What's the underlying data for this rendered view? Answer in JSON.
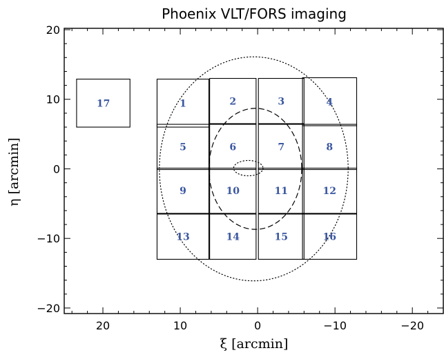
{
  "chart_data": {
    "type": "scatter",
    "title": "Phoenix VLT/FORS imaging",
    "xlabel": "ξ [arcmin]",
    "ylabel": "η [arcmin]",
    "xlim": [
      25,
      -24
    ],
    "ylim": [
      -20.8,
      20.2
    ],
    "xticks": [
      20,
      10,
      0,
      -10,
      -20
    ],
    "yticks": [
      20,
      10,
      0,
      -10,
      -20
    ],
    "xtick_labels": [
      "20",
      "10",
      "0",
      "−10",
      "−20"
    ],
    "ytick_labels": [
      "20",
      "10",
      "0",
      "−10",
      "−20"
    ],
    "grid": false,
    "label_color": "#3a56a0",
    "fields": [
      {
        "label": "1",
        "xmin": 6.3,
        "xmax": 13.0,
        "ymin": 6.0,
        "ymax": 12.9
      },
      {
        "label": "2",
        "xmin": 0.2,
        "xmax": 6.2,
        "ymin": 6.5,
        "ymax": 13.0
      },
      {
        "label": "3",
        "xmin": -6.0,
        "xmax": -0.1,
        "ymin": 6.5,
        "ymax": 13.0
      },
      {
        "label": "4",
        "xmin": -12.8,
        "xmax": -5.8,
        "ymin": 6.2,
        "ymax": 13.1
      },
      {
        "label": "5",
        "xmin": 6.3,
        "xmax": 13.0,
        "ymin": -0.1,
        "ymax": 6.4
      },
      {
        "label": "6",
        "xmin": 0.2,
        "xmax": 6.2,
        "ymin": -0.1,
        "ymax": 6.4
      },
      {
        "label": "7",
        "xmin": -6.0,
        "xmax": -0.1,
        "ymin": -0.1,
        "ymax": 6.4
      },
      {
        "label": "8",
        "xmin": -12.8,
        "xmax": -5.8,
        "ymin": -0.1,
        "ymax": 6.4
      },
      {
        "label": "9",
        "xmin": 6.3,
        "xmax": 13.0,
        "ymin": -6.4,
        "ymax": 0.1
      },
      {
        "label": "10",
        "xmin": 0.2,
        "xmax": 6.2,
        "ymin": -6.4,
        "ymax": 0.1
      },
      {
        "label": "11",
        "xmin": -6.0,
        "xmax": -0.1,
        "ymin": -6.4,
        "ymax": 0.1
      },
      {
        "label": "12",
        "xmin": -12.8,
        "xmax": -5.8,
        "ymin": -6.4,
        "ymax": 0.1
      },
      {
        "label": "13",
        "xmin": 6.3,
        "xmax": 13.0,
        "ymin": -13.0,
        "ymax": -6.5
      },
      {
        "label": "14",
        "xmin": 0.2,
        "xmax": 6.2,
        "ymin": -13.0,
        "ymax": -6.5
      },
      {
        "label": "15",
        "xmin": -6.0,
        "xmax": -0.1,
        "ymin": -13.0,
        "ymax": -6.5
      },
      {
        "label": "16",
        "xmin": -12.8,
        "xmax": -5.8,
        "ymin": -13.0,
        "ymax": -6.5
      },
      {
        "label": "17",
        "xmin": 16.5,
        "xmax": 23.4,
        "ymin": 6.0,
        "ymax": 12.9
      }
    ],
    "ellipses": [
      {
        "cx": 0.5,
        "cy": 0.0,
        "rx": 12.2,
        "ry": 16.1,
        "style": "dotted"
      },
      {
        "cx": 0.3,
        "cy": 0.0,
        "rx": 6.0,
        "ry": 8.7,
        "style": "dashed"
      },
      {
        "cx": 1.2,
        "cy": 0.1,
        "rx": 1.9,
        "ry": 1.1,
        "style": "dotted"
      }
    ]
  }
}
